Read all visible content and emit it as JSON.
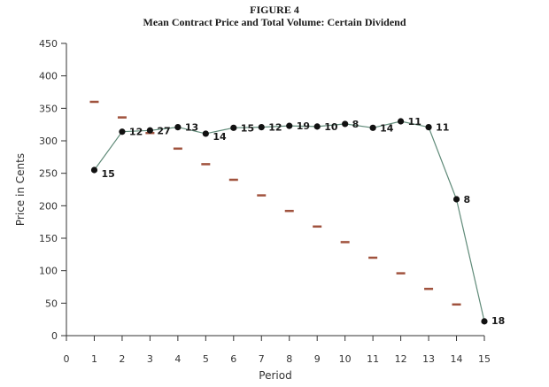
{
  "figure_label": "FIGURE 4",
  "chart_data": {
    "type": "line",
    "title": "Mean Contract Price and Total Volume: Certain Dividend",
    "xlabel": "Period",
    "ylabel": "Price in Cents",
    "xlim": [
      0,
      15
    ],
    "ylim": [
      0,
      450
    ],
    "x_ticks": [
      0,
      1,
      2,
      3,
      4,
      5,
      6,
      7,
      8,
      9,
      10,
      11,
      12,
      13,
      14,
      15
    ],
    "y_ticks": [
      0,
      50,
      100,
      150,
      200,
      250,
      300,
      350,
      400,
      450
    ],
    "grid": false,
    "legend": "none",
    "series": [
      {
        "kind": "line-markers",
        "color": "#5f8a78",
        "marker_color": "#111111",
        "x": [
          1,
          2,
          3,
          4,
          5,
          6,
          7,
          8,
          9,
          10,
          11,
          12,
          13,
          14,
          15
        ],
        "values": [
          255,
          314,
          316,
          321,
          311,
          320,
          321,
          323,
          322,
          326,
          320,
          330,
          321,
          210,
          22
        ],
        "point_labels": [
          "15",
          "12",
          "27",
          "13",
          "14",
          "15",
          "12",
          "19",
          "10",
          "8",
          "14",
          "11",
          "11",
          "8",
          "18"
        ]
      },
      {
        "kind": "dash-markers",
        "color": "#a0523d",
        "x": [
          1,
          2,
          3,
          4,
          5,
          6,
          7,
          8,
          9,
          10,
          11,
          12,
          13,
          14
        ],
        "values": [
          360,
          336,
          312,
          288,
          264,
          240,
          216,
          192,
          168,
          144,
          120,
          96,
          72,
          48
        ]
      }
    ]
  }
}
